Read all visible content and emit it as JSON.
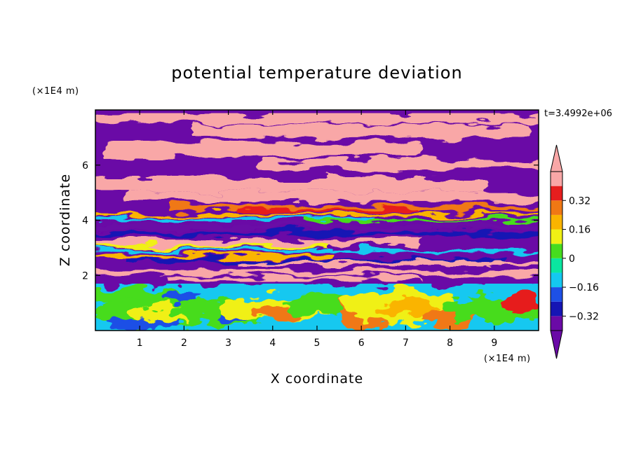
{
  "chart_data": {
    "type": "heatmap",
    "title": "potential temperature deviation",
    "xlabel": "X coordinate",
    "ylabel": "Z coordinate",
    "x_unit": "(×1E4 m)",
    "y_unit": "(×1E4 m)",
    "time_label": "t=3.4992e+06",
    "xlim": [
      0,
      10
    ],
    "ylim": [
      0,
      8
    ],
    "x_ticks": [
      1,
      2,
      3,
      4,
      5,
      6,
      7,
      8,
      9
    ],
    "y_ticks": [
      2,
      4,
      6
    ],
    "colorbar": {
      "levels": [
        -0.4,
        -0.32,
        -0.24,
        -0.16,
        -0.08,
        0,
        0.08,
        0.16,
        0.24,
        0.32,
        0.4
      ],
      "colors": [
        "#6a0aa6",
        "#1515b4",
        "#1e50e6",
        "#14c8f0",
        "#0ae6a0",
        "#46dc1e",
        "#f0f014",
        "#fab400",
        "#f07814",
        "#e61e1e",
        "#f9a7a7"
      ],
      "under_color": "#6a0aa6",
      "over_color": "#f9a7a7",
      "labeled_ticks": [
        "0.32",
        "0.16",
        "0",
        "−0.16",
        "−0.32"
      ],
      "extend": "both"
    },
    "field_description": "stratified layers above ~2, turbulent mixed layer below ~2"
  }
}
